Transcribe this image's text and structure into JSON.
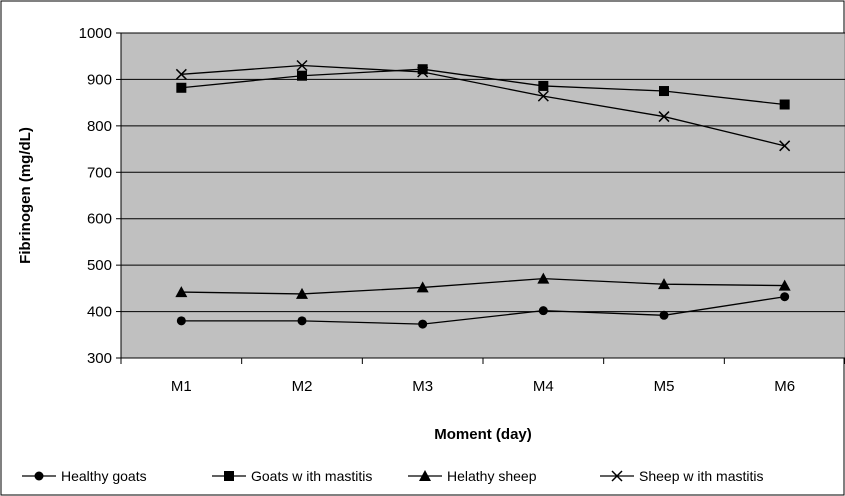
{
  "chart_data": {
    "type": "line",
    "title": "",
    "xlabel": "Moment (day)",
    "ylabel": "Fibrinogen (mg/dL)",
    "categories": [
      "M1",
      "M2",
      "M3",
      "M4",
      "M5",
      "M6"
    ],
    "ylim": [
      300,
      1000
    ],
    "yticks": [
      "300",
      "400",
      "500",
      "600",
      "700",
      "800",
      "900",
      "1000"
    ],
    "grid": true,
    "legend_position": "bottom",
    "plot_background": "#c0c0c0",
    "series": [
      {
        "name": "Healthy goats",
        "marker": "circle",
        "values": [
          380,
          380,
          373,
          402,
          392,
          432
        ]
      },
      {
        "name": "Goats w ith mastitis",
        "marker": "square",
        "values": [
          882,
          908,
          922,
          886,
          875,
          846
        ]
      },
      {
        "name": "Helathy sheep",
        "marker": "triangle",
        "values": [
          442,
          438,
          452,
          471,
          459,
          456
        ]
      },
      {
        "name": "Sheep w ith mastitis",
        "marker": "x",
        "values": [
          911,
          930,
          916,
          864,
          820,
          757
        ]
      }
    ]
  }
}
